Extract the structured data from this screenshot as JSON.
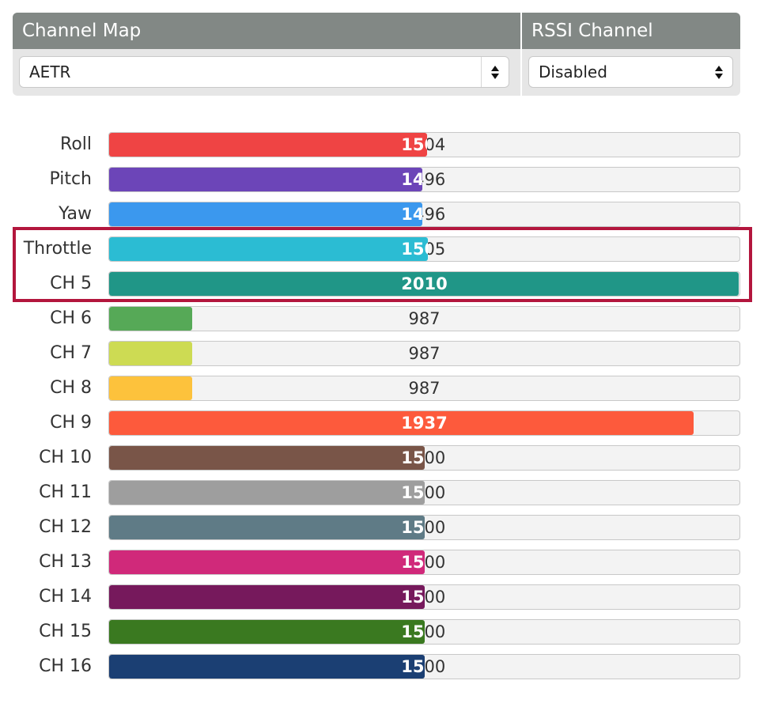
{
  "channel_map": {
    "title": "Channel Map",
    "selected": "AETR"
  },
  "rssi": {
    "title": "RSSI Channel",
    "selected": "Disabled"
  },
  "range": {
    "min": 987,
    "max": 2011
  },
  "channels": [
    {
      "label": "Roll",
      "value": "1504",
      "color": "#ef4444"
    },
    {
      "label": "Pitch",
      "value": "1496",
      "color": "#6c45b8"
    },
    {
      "label": "Yaw",
      "value": "1496",
      "color": "#3b98ee"
    },
    {
      "label": "Throttle",
      "value": "1505",
      "color": "#2bbcd3"
    },
    {
      "label": "CH 5",
      "value": "2010",
      "color": "#209687"
    },
    {
      "label": "CH 6",
      "value": "987",
      "color": "#56a957"
    },
    {
      "label": "CH 7",
      "value": "987",
      "color": "#cddb53"
    },
    {
      "label": "CH 8",
      "value": "987",
      "color": "#fdc23c"
    },
    {
      "label": "CH 9",
      "value": "1937",
      "color": "#fd5a3c"
    },
    {
      "label": "CH 10",
      "value": "1500",
      "color": "#795548"
    },
    {
      "label": "CH 11",
      "value": "1500",
      "color": "#9e9e9e"
    },
    {
      "label": "CH 12",
      "value": "1500",
      "color": "#5f7b86"
    },
    {
      "label": "CH 13",
      "value": "1500",
      "color": "#d0297a"
    },
    {
      "label": "CH 14",
      "value": "1500",
      "color": "#76195c"
    },
    {
      "label": "CH 15",
      "value": "1500",
      "color": "#3a7920"
    },
    {
      "label": "CH 16",
      "value": "1500",
      "color": "#1b3f73"
    }
  ]
}
